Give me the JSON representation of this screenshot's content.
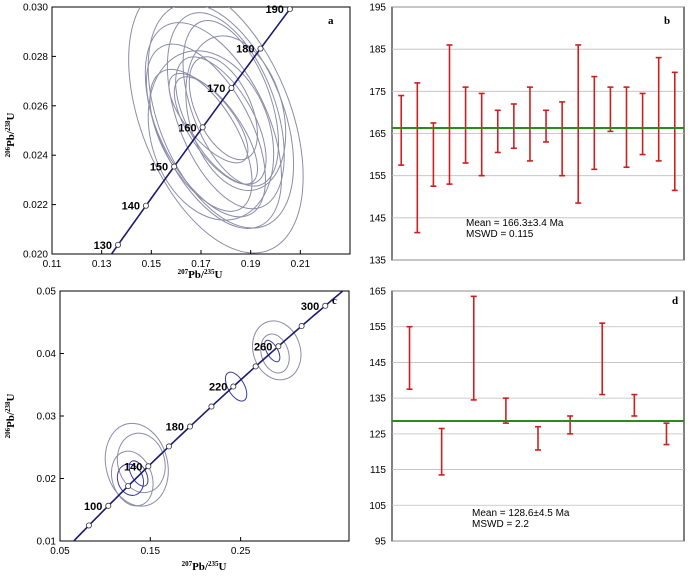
{
  "colors": {
    "concordia": "#1a1a6e",
    "ellipse": "#8c8caa",
    "ellipse_dark": "#3a3aa0",
    "error_bar": "#cc2020",
    "mean_line": "#2a8a1a",
    "grid": "#bdbdbd"
  },
  "chart_data": [
    {
      "id": "a",
      "type": "scatter",
      "subtype": "concordia",
      "panel_label": "a",
      "xlabel_sup1": "207",
      "xlabel_mid": "Pb/",
      "xlabel_sup2": "235",
      "xlabel_end": "U",
      "ylabel_sup1": "206",
      "ylabel_mid": "Pb/",
      "ylabel_sup2": "238",
      "ylabel_end": "U",
      "xlim": [
        0.11,
        0.23
      ],
      "ylim": [
        0.02,
        0.03
      ],
      "xticks": [
        0.11,
        0.13,
        0.15,
        0.17,
        0.19,
        0.21
      ],
      "xtick_labels": [
        "0.11",
        "0.13",
        "0.15",
        "0.17",
        "0.19",
        "0.21"
      ],
      "yticks": [
        0.02,
        0.022,
        0.024,
        0.026,
        0.028,
        0.03
      ],
      "ytick_labels": [
        "0.020",
        "0.022",
        "0.024",
        "0.026",
        "0.028",
        "0.030"
      ],
      "concordia_ages": [
        130,
        140,
        150,
        160,
        170,
        180,
        190
      ],
      "concordia_age_labels": [
        "130",
        "140",
        "150",
        "160",
        "170",
        "180",
        "190"
      ],
      "ellipses": [
        {
          "x": 0.176,
          "y": 0.0255,
          "rx": 0.03,
          "ry": 0.0018,
          "angle": 22
        },
        {
          "x": 0.178,
          "y": 0.0256,
          "rx": 0.025,
          "ry": 0.0015,
          "angle": 22
        },
        {
          "x": 0.175,
          "y": 0.0252,
          "rx": 0.022,
          "ry": 0.0014,
          "angle": 25
        },
        {
          "x": 0.18,
          "y": 0.0258,
          "rx": 0.02,
          "ry": 0.0013,
          "angle": 20
        },
        {
          "x": 0.172,
          "y": 0.025,
          "rx": 0.018,
          "ry": 0.0012,
          "angle": 28
        },
        {
          "x": 0.182,
          "y": 0.0261,
          "rx": 0.016,
          "ry": 0.0011,
          "angle": 20
        },
        {
          "x": 0.174,
          "y": 0.0248,
          "rx": 0.024,
          "ry": 0.0011,
          "angle": 18
        },
        {
          "x": 0.178,
          "y": 0.0254,
          "rx": 0.013,
          "ry": 0.0009,
          "angle": 30
        },
        {
          "x": 0.17,
          "y": 0.0246,
          "rx": 0.015,
          "ry": 0.001,
          "angle": 30
        },
        {
          "x": 0.184,
          "y": 0.0257,
          "rx": 0.019,
          "ry": 0.001,
          "angle": 15
        },
        {
          "x": 0.176,
          "y": 0.025,
          "rx": 0.01,
          "ry": 0.0008,
          "angle": 35
        },
        {
          "x": 0.179,
          "y": 0.0259,
          "rx": 0.011,
          "ry": 0.0007,
          "angle": 25
        },
        {
          "x": 0.173,
          "y": 0.0255,
          "rx": 0.009,
          "ry": 0.0007,
          "angle": 40
        }
      ]
    },
    {
      "id": "b",
      "type": "bar",
      "subtype": "weighted-mean",
      "panel_label": "b",
      "ylim": [
        135,
        195
      ],
      "yticks": [
        135,
        145,
        155,
        165,
        175,
        185,
        195
      ],
      "ytick_labels": [
        "135",
        "145",
        "155",
        "165",
        "175",
        "185",
        "195"
      ],
      "mean": 166.3,
      "mean_text": "Mean = 166.3±3.4 Ma",
      "mswd_text": "MSWD = 0.115",
      "series": [
        {
          "name": "grains",
          "lows": [
            157.5,
            141.5,
            152.5,
            153,
            158,
            155,
            160.5,
            161.5,
            158.5,
            163,
            155,
            148.5,
            156.5,
            165.5,
            157,
            160,
            158.5,
            151.5
          ],
          "highs": [
            174,
            177,
            167.5,
            186,
            176,
            174.5,
            170.5,
            172,
            176,
            170.5,
            172.5,
            186,
            178.5,
            176,
            176,
            174.5,
            183,
            179.5
          ]
        }
      ]
    },
    {
      "id": "c",
      "type": "scatter",
      "subtype": "concordia",
      "panel_label": "c",
      "xlabel_sup1": "207",
      "xlabel_mid": "Pb/",
      "xlabel_sup2": "235",
      "xlabel_end": "U",
      "ylabel_sup1": "206",
      "ylabel_mid": "Pb/",
      "ylabel_sup2": "238",
      "ylabel_end": "U",
      "xlim": [
        0.05,
        0.37
      ],
      "ylim": [
        0.01,
        0.05
      ],
      "xticks": [
        0.05,
        0.15,
        0.25
      ],
      "xtick_labels": [
        "0.05",
        "0.15",
        "0.25"
      ],
      "yticks": [
        0.01,
        0.02,
        0.03,
        0.04,
        0.05
      ],
      "ytick_labels": [
        "0.01",
        "0.02",
        "0.03",
        "0.04",
        "0.05"
      ],
      "concordia_ages": [
        60,
        80,
        100,
        120,
        140,
        160,
        180,
        200,
        220,
        240,
        260,
        280,
        300
      ],
      "labeled_ages": [
        100,
        140,
        180,
        220,
        260,
        300
      ],
      "concordia_age_labels": [
        "100",
        "140",
        "180",
        "220",
        "260",
        "300"
      ],
      "ellipses": [
        {
          "x": 0.135,
          "y": 0.0222,
          "rx": 0.034,
          "ry": 0.0021,
          "angle": 14,
          "dark": false
        },
        {
          "x": 0.14,
          "y": 0.0225,
          "rx": 0.026,
          "ry": 0.0015,
          "angle": 14,
          "dark": false
        },
        {
          "x": 0.13,
          "y": 0.02,
          "rx": 0.022,
          "ry": 0.0014,
          "angle": 18,
          "dark": false
        },
        {
          "x": 0.128,
          "y": 0.0198,
          "rx": 0.014,
          "ry": 0.0008,
          "angle": 20,
          "dark": true
        },
        {
          "x": 0.137,
          "y": 0.0208,
          "rx": 0.008,
          "ry": 0.0007,
          "angle": 30,
          "dark": true
        },
        {
          "x": 0.245,
          "y": 0.0347,
          "rx": 0.009,
          "ry": 0.0008,
          "angle": 30,
          "dark": true
        },
        {
          "x": 0.29,
          "y": 0.0405,
          "rx": 0.026,
          "ry": 0.0015,
          "angle": 18,
          "dark": false
        },
        {
          "x": 0.288,
          "y": 0.04,
          "rx": 0.015,
          "ry": 0.001,
          "angle": 18,
          "dark": false
        },
        {
          "x": 0.285,
          "y": 0.0404,
          "rx": 0.006,
          "ry": 0.0006,
          "angle": 30,
          "dark": true
        }
      ]
    },
    {
      "id": "d",
      "type": "bar",
      "subtype": "weighted-mean",
      "panel_label": "d",
      "ylim": [
        95,
        165
      ],
      "yticks": [
        95,
        105,
        115,
        125,
        135,
        145,
        155,
        165
      ],
      "ytick_labels": [
        "95",
        "105",
        "115",
        "125",
        "135",
        "145",
        "155",
        "165"
      ],
      "mean": 128.6,
      "mean_text": "Mean = 128.6±4.5 Ma",
      "mswd_text": "MSWD = 2.2",
      "series": [
        {
          "name": "grains",
          "lows": [
            137.5,
            113.5,
            134.5,
            128,
            120.5,
            125,
            136,
            130,
            122
          ],
          "highs": [
            155,
            126.5,
            163.5,
            135,
            127,
            130,
            156,
            136,
            128
          ]
        }
      ]
    }
  ]
}
